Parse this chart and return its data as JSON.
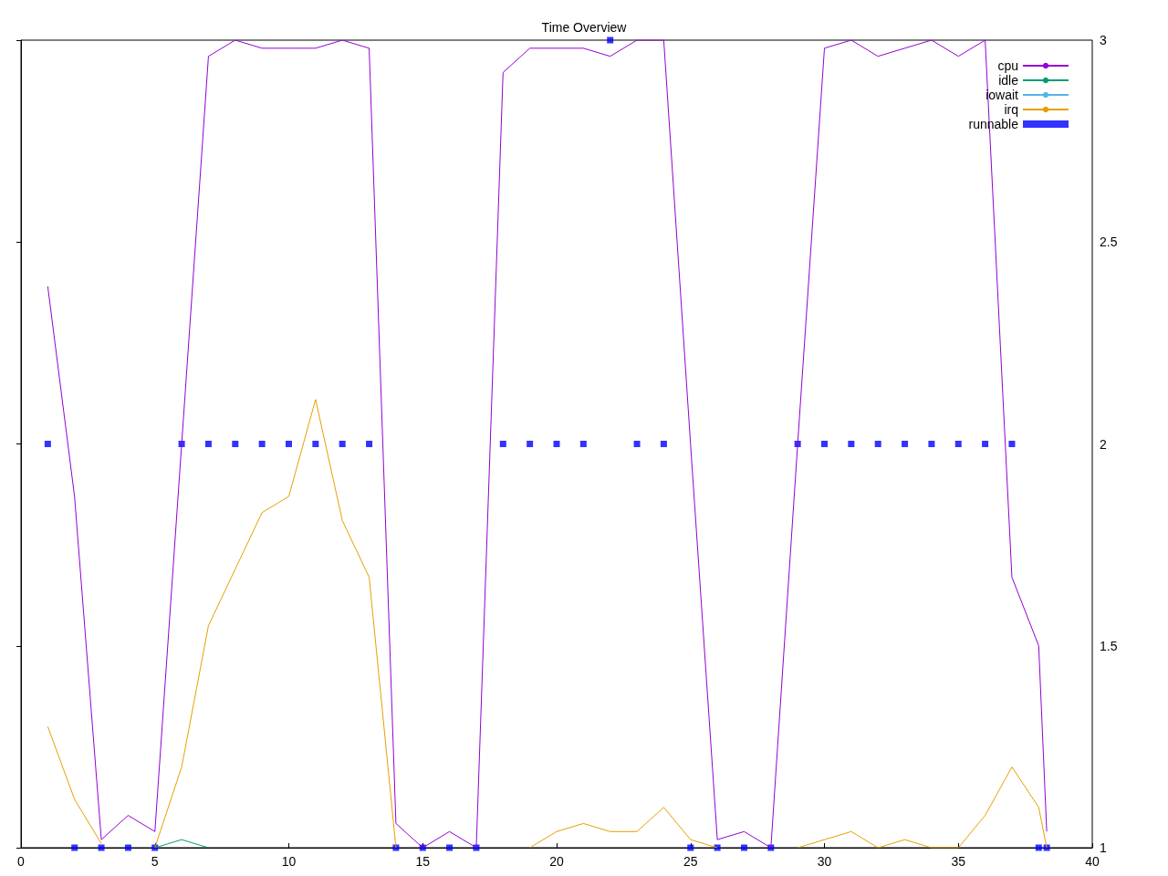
{
  "chart_data": {
    "type": "line",
    "title": "Time Overview",
    "x": [
      1,
      2,
      3,
      4,
      5,
      6,
      7,
      8,
      9,
      10,
      11,
      12,
      13,
      14,
      15,
      16,
      17,
      18,
      19,
      20,
      21,
      22,
      23,
      24,
      25,
      26,
      27,
      28,
      29,
      30,
      31,
      32,
      33,
      34,
      35,
      36,
      37,
      38,
      38.3
    ],
    "series": [
      {
        "name": "cpu",
        "color": "#9400d3",
        "values": [
          2.39,
          1.87,
          1.02,
          1.08,
          1.04,
          2.0,
          2.96,
          3.0,
          2.98,
          2.98,
          2.98,
          3.0,
          2.98,
          1.06,
          1.0,
          1.04,
          1.0,
          2.92,
          2.98,
          2.98,
          2.98,
          2.96,
          3.0,
          3.0,
          2.0,
          1.02,
          1.04,
          1.0,
          2.0,
          2.98,
          3.0,
          2.96,
          2.98,
          3.0,
          2.96,
          3.0,
          1.67,
          1.5,
          1.04
        ]
      },
      {
        "name": "idle",
        "color": "#009e73",
        "values": [
          null,
          null,
          null,
          null,
          1.0,
          1.02,
          1.0,
          null,
          null,
          null,
          null,
          null,
          null,
          null,
          null,
          null,
          null,
          null,
          null,
          null,
          null,
          null,
          null,
          null,
          null,
          null,
          null,
          null,
          null,
          null,
          null,
          null,
          null,
          null,
          null,
          null,
          null,
          null,
          null
        ]
      },
      {
        "name": "iowait",
        "color": "#56b4e9",
        "values": [
          null,
          null,
          null,
          null,
          null,
          null,
          null,
          null,
          null,
          null,
          null,
          null,
          null,
          null,
          null,
          null,
          null,
          null,
          null,
          null,
          null,
          null,
          null,
          null,
          null,
          null,
          null,
          null,
          null,
          null,
          null,
          null,
          null,
          null,
          null,
          null,
          null,
          null,
          null
        ]
      },
      {
        "name": "irq",
        "color": "#e69f00",
        "values": [
          1.3,
          1.12,
          1.01,
          null,
          1.0,
          1.2,
          1.55,
          1.69,
          1.83,
          1.87,
          2.11,
          1.81,
          1.67,
          1.0,
          null,
          null,
          null,
          null,
          1.0,
          1.04,
          1.06,
          1.04,
          1.04,
          1.1,
          1.02,
          1.0,
          null,
          null,
          1.0,
          1.02,
          1.04,
          1.0,
          1.02,
          1.0,
          1.0,
          1.08,
          1.2,
          1.1,
          1.0
        ]
      },
      {
        "name": "runnable",
        "type": "scatter",
        "marker": "square",
        "color": "#0000ff",
        "values": [
          2,
          1,
          1,
          1,
          1,
          2,
          2,
          2,
          2,
          2,
          2,
          2,
          2,
          1,
          1,
          1,
          1,
          2,
          2,
          2,
          2,
          3,
          2,
          2,
          1,
          1,
          1,
          1,
          2,
          2,
          2,
          2,
          2,
          2,
          2,
          2,
          2,
          1,
          1
        ]
      }
    ],
    "xlim": [
      0,
      40
    ],
    "xticks": [
      0,
      5,
      10,
      15,
      20,
      25,
      30,
      35,
      40
    ],
    "ylim": [
      1,
      3
    ],
    "yticks": [
      1,
      1.5,
      2,
      2.5,
      3
    ],
    "grid": false,
    "legend": "top right",
    "marker": "none"
  }
}
